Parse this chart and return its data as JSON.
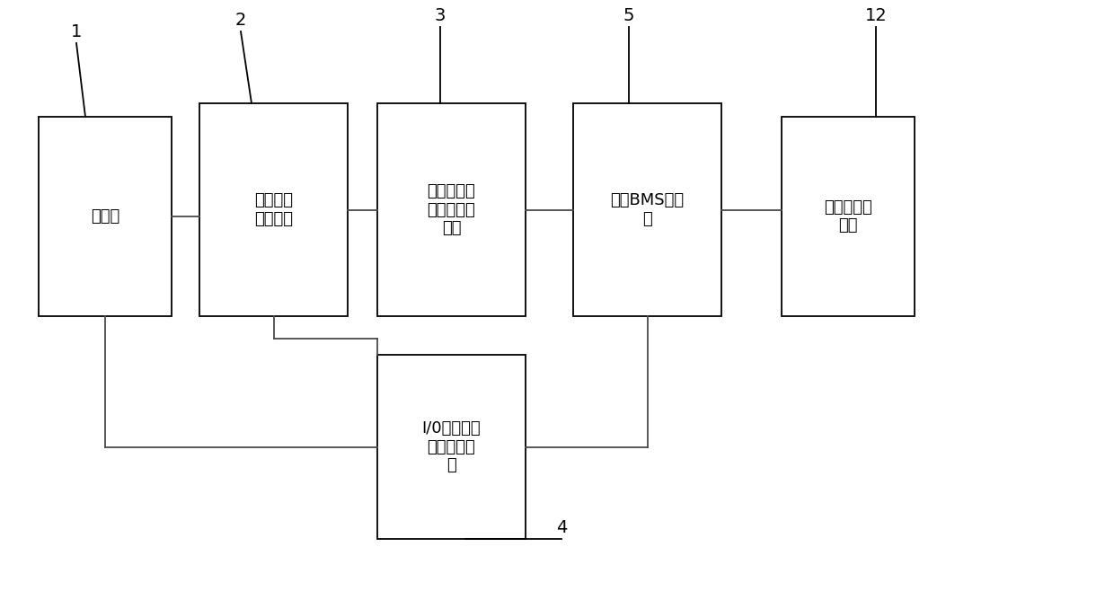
{
  "boxes": [
    {
      "id": 1,
      "label_lines": [
        "计算机"
      ],
      "number": "1"
    },
    {
      "id": 2,
      "label_lines": [
        "电池单体",
        "仿真单元"
      ],
      "number": "2"
    },
    {
      "id": 3,
      "label_lines": [
        "电池单体电",
        "气故障注入",
        "单元"
      ],
      "number": "3"
    },
    {
      "id": 4,
      "label_lines": [
        "I/0信号电气",
        "故障注入单",
        "元"
      ],
      "number": "4"
    },
    {
      "id": 5,
      "label_lines": [
        "被测BMS控制",
        "器"
      ],
      "number": "5"
    },
    {
      "id": 12,
      "label_lines": [
        "真实或模拟",
        "负载"
      ],
      "number": "12"
    }
  ],
  "bg_color": "#ffffff",
  "box_edge_color": "#000000",
  "line_color": "#4a4a4a",
  "font_size": 13,
  "number_font_size": 14
}
